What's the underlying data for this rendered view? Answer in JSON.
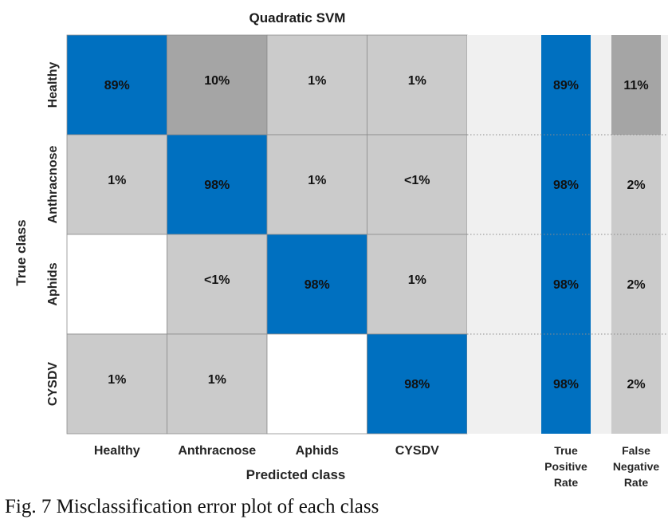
{
  "chart_data": {
    "type": "heatmap",
    "title": "Quadratic SVM",
    "xlabel": "Predicted class",
    "ylabel": "True class",
    "classes": [
      "Healthy",
      "Anthracnose",
      "Aphids",
      "CYSDV"
    ],
    "matrix_labels": [
      [
        "89%",
        "10%",
        "1%",
        "1%"
      ],
      [
        "1%",
        "98%",
        "1%",
        "<1%"
      ],
      [
        "",
        "<1%",
        "98%",
        "1%"
      ],
      [
        "1%",
        "1%",
        "",
        "98%"
      ]
    ],
    "matrix_values": [
      [
        89,
        10,
        1,
        1
      ],
      [
        1,
        98,
        1,
        0.5
      ],
      [
        0,
        0.5,
        98,
        1
      ],
      [
        1,
        1,
        0,
        98
      ]
    ],
    "summary_columns": [
      {
        "header": [
          "True",
          "Positive",
          "Rate"
        ],
        "labels": [
          "89%",
          "98%",
          "98%",
          "98%"
        ],
        "values": [
          89,
          98,
          98,
          98
        ],
        "kind": "tpr"
      },
      {
        "header": [
          "False",
          "Negative",
          "Rate"
        ],
        "labels": [
          "11%",
          "2%",
          "2%",
          "2%"
        ],
        "values": [
          11,
          2,
          2,
          2
        ],
        "kind": "fnr"
      }
    ],
    "colors": {
      "diagonal": "#0070c0",
      "off_high": "#a5a5a5",
      "off_low": "#cbcbcb",
      "empty": "#ffffff",
      "separator": "#f0f0f0"
    }
  },
  "caption": "Fig. 7 Misclassification error plot of each class"
}
